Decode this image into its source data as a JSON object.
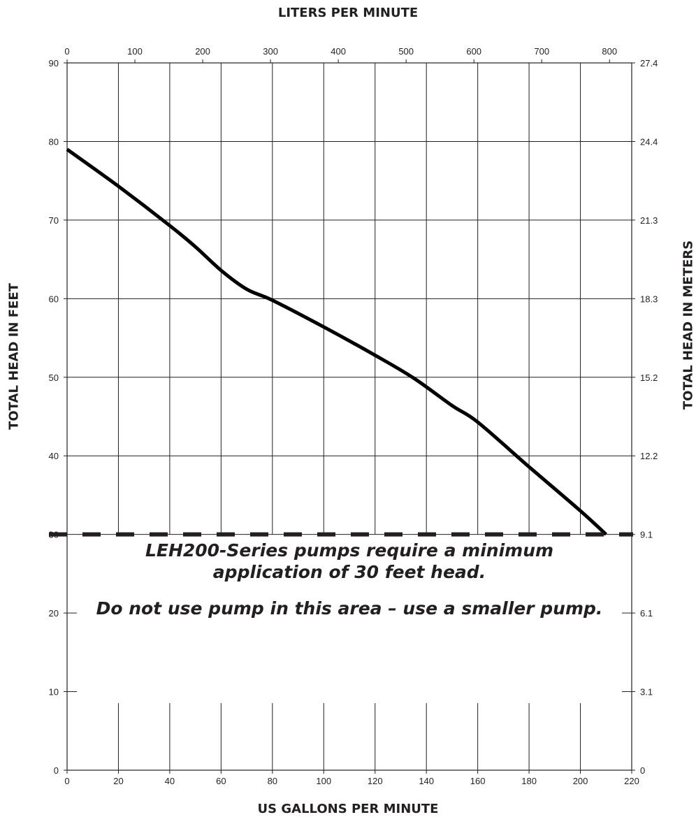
{
  "chart_data": {
    "type": "line",
    "xlabel": "US GALLONS PER MINUTE",
    "x2label": "LITERS PER MINUTE",
    "ylabel": "TOTAL HEAD IN FEET",
    "y2label": "TOTAL HEAD IN METERS",
    "xlim": [
      0,
      220
    ],
    "ylim": [
      0,
      90
    ],
    "x_ticks": [
      "0",
      "20",
      "40",
      "60",
      "80",
      "100",
      "120",
      "140",
      "160",
      "180",
      "200",
      "220"
    ],
    "x2_ticks": [
      "0",
      "100",
      "200",
      "300",
      "400",
      "500",
      "600",
      "700",
      "800"
    ],
    "y_ticks": [
      "0",
      "10",
      "20",
      "30",
      "40",
      "50",
      "60",
      "70",
      "80",
      "90"
    ],
    "y2_ticks": [
      "0",
      "3.1",
      "6.1",
      "9.1",
      "12.2",
      "15.2",
      "18.3",
      "21.3",
      "24.4",
      "27.4"
    ],
    "grid": true,
    "series": [
      {
        "color": "#000000",
        "style": "solid",
        "x": [
          0,
          20,
          40,
          50,
          60,
          70,
          80,
          100,
          120,
          135,
          150,
          160,
          180,
          200,
          210
        ],
        "y": [
          79,
          74.3,
          69.3,
          66.6,
          63.6,
          61.2,
          59.8,
          56.4,
          52.8,
          49.9,
          46.4,
          44.3,
          38.6,
          33.0,
          30.0
        ]
      },
      {
        "color": "#231f20",
        "style": "dashed",
        "x": [
          0,
          220
        ],
        "y": [
          30,
          30
        ]
      }
    ],
    "annotations": [
      "LEH200-Series pumps require a minimum",
      "application of 30 feet head.",
      "Do not use pump in this area – use a smaller pump."
    ]
  },
  "titles": {
    "x_bottom": "US GALLONS PER MINUTE",
    "x_top": "LITERS PER MINUTE",
    "y_left": "TOTAL HEAD IN FEET",
    "y_right": "TOTAL HEAD IN METERS"
  },
  "notes": {
    "line1": "LEH200-Series pumps require a minimum",
    "line2": "application of 30 feet head.",
    "line3": "Do not use pump in this area – use a smaller pump."
  }
}
